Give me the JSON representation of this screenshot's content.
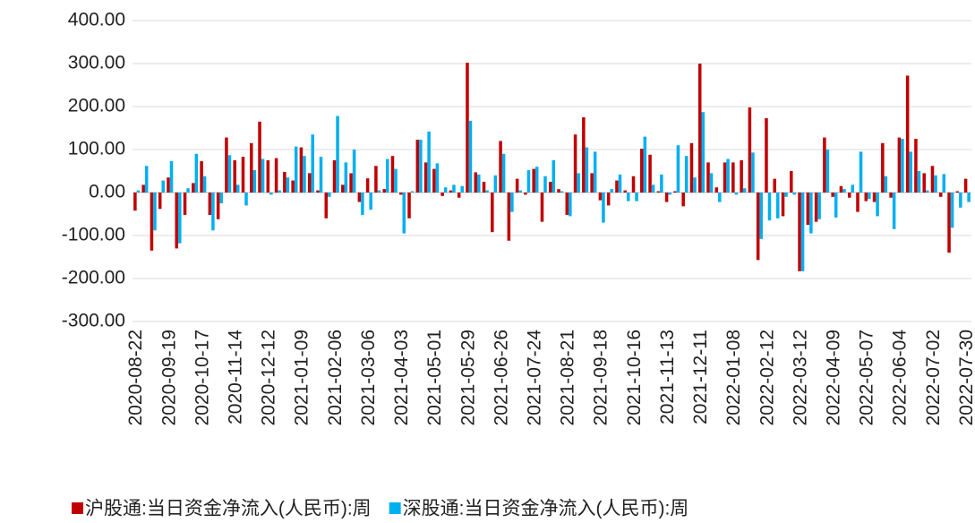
{
  "chart_data": {
    "type": "bar",
    "categories": [
      "2020-08-22",
      null,
      null,
      null,
      "2020-09-19",
      null,
      null,
      null,
      "2020-10-17",
      null,
      null,
      null,
      "2020-11-14",
      null,
      null,
      null,
      "2020-12-12",
      null,
      null,
      null,
      "2021-01-09",
      null,
      null,
      null,
      "2021-02-06",
      null,
      null,
      null,
      "2021-03-06",
      null,
      null,
      null,
      "2021-04-03",
      null,
      null,
      null,
      "2021-05-01",
      null,
      null,
      null,
      "2021-05-29",
      null,
      null,
      null,
      "2021-06-26",
      null,
      null,
      null,
      "2021-07-24",
      null,
      null,
      null,
      "2021-08-21",
      null,
      null,
      null,
      "2021-09-18",
      null,
      null,
      null,
      "2021-10-16",
      null,
      null,
      null,
      "2021-11-13",
      null,
      null,
      null,
      "2021-12-11",
      null,
      null,
      null,
      "2022-01-08",
      null,
      null,
      null,
      "2022-02-12",
      null,
      null,
      null,
      "2022-03-12",
      null,
      null,
      null,
      "2022-04-09",
      null,
      null,
      null,
      "2022-05-07",
      null,
      null,
      null,
      "2022-06-04",
      null,
      null,
      null,
      "2022-07-02",
      null,
      null,
      null,
      "2022-07-30"
    ],
    "series": [
      {
        "name": "沪股通:当日资金净流入(人民币):周",
        "color": "#c00000",
        "values": [
          -42,
          18,
          -135,
          -38,
          35,
          -130,
          -52,
          22,
          73,
          -52,
          -62,
          128,
          75,
          83,
          115,
          165,
          75,
          80,
          48,
          28,
          105,
          45,
          5,
          -60,
          75,
          18,
          45,
          -22,
          33,
          62,
          8,
          85,
          -5,
          -60,
          123,
          70,
          55,
          -8,
          5,
          -12,
          302,
          47,
          25,
          -92,
          120,
          -112,
          32,
          -5,
          55,
          -68,
          25,
          8,
          -52,
          135,
          175,
          45,
          -18,
          -30,
          28,
          5,
          38,
          102,
          88,
          3,
          -22,
          3,
          -32,
          115,
          300,
          70,
          12,
          70,
          70,
          75,
          198,
          -157,
          173,
          32,
          -55,
          50,
          -183,
          -75,
          -68,
          128,
          -10,
          15,
          -12,
          -45,
          -20,
          -22,
          115,
          -12,
          128,
          272,
          125,
          45,
          62,
          -10,
          -140,
          3,
          32
        ]
      },
      {
        "name": "深股通:当日资金净流入(人民币):周",
        "color": "#00b0f0",
        "values": [
          5,
          62,
          -88,
          28,
          73,
          -118,
          10,
          90,
          38,
          -88,
          -25,
          87,
          18,
          -30,
          52,
          78,
          -5,
          5,
          35,
          107,
          85,
          135,
          83,
          -10,
          178,
          70,
          100,
          -52,
          -40,
          5,
          78,
          55,
          -95,
          3,
          123,
          142,
          68,
          12,
          18,
          15,
          167,
          42,
          5,
          40,
          90,
          -45,
          5,
          52,
          60,
          38,
          75,
          3,
          -55,
          45,
          105,
          95,
          -70,
          8,
          42,
          -20,
          -20,
          130,
          18,
          42,
          -5,
          110,
          85,
          35,
          187,
          45,
          -22,
          78,
          -5,
          10,
          93,
          -108,
          -65,
          -60,
          -10,
          -5,
          -183,
          -95,
          -62,
          100,
          -58,
          8,
          18,
          95,
          -15,
          -55,
          38,
          -85,
          125,
          95,
          50,
          5,
          40,
          43,
          -82,
          -35,
          -22
        ]
      }
    ],
    "ylim": [
      -300,
      400
    ],
    "yticks": [
      {
        "value": -300,
        "label": "-300.00"
      },
      {
        "value": -200,
        "label": "-200.00"
      },
      {
        "value": -100,
        "label": "-100.00"
      },
      {
        "value": 0,
        "label": "0.00"
      },
      {
        "value": 100,
        "label": "100.00"
      },
      {
        "value": 200,
        "label": "200.00"
      },
      {
        "value": 300,
        "label": "300.00"
      },
      {
        "value": 400,
        "label": "400.00"
      }
    ],
    "grid": true,
    "legend": "bottom"
  }
}
